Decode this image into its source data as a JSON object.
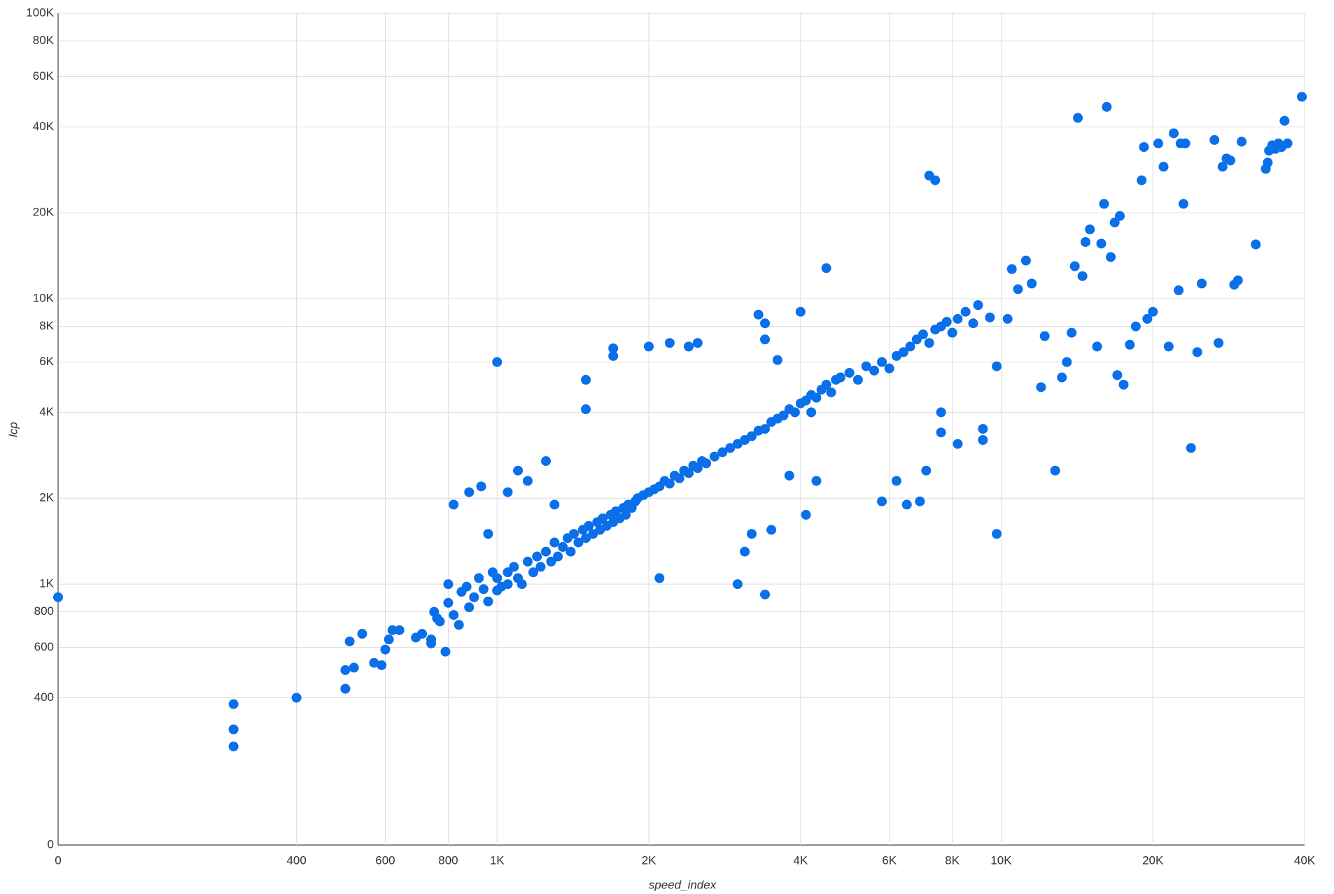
{
  "chart_data": {
    "type": "scatter",
    "x_label": "speed_index",
    "y_label": "lcp",
    "color": "#0a6fe8",
    "xscale": "log",
    "yscale": "log",
    "grid": true,
    "xlim": [
      0,
      40000
    ],
    "ylim": [
      0,
      100000
    ],
    "xticks": [
      0,
      400,
      600,
      800,
      {
        "value": 1000,
        "label": "1K"
      },
      {
        "value": 2000,
        "label": "2K"
      },
      {
        "value": 4000,
        "label": "4K"
      },
      {
        "value": 6000,
        "label": "6K"
      },
      {
        "value": 8000,
        "label": "8K"
      },
      {
        "value": 10000,
        "label": "10K"
      },
      {
        "value": 20000,
        "label": "20K"
      },
      {
        "value": 40000,
        "label": "40K"
      }
    ],
    "yticks": [
      0,
      400,
      600,
      800,
      {
        "value": 1000,
        "label": "1K"
      },
      {
        "value": 2000,
        "label": "2K"
      },
      {
        "value": 4000,
        "label": "4K"
      },
      {
        "value": 6000,
        "label": "6K"
      },
      {
        "value": 8000,
        "label": "8K"
      },
      {
        "value": 10000,
        "label": "10K"
      },
      {
        "value": 20000,
        "label": "20K"
      },
      {
        "value": 40000,
        "label": "40K"
      },
      {
        "value": 60000,
        "label": "60K"
      },
      {
        "value": 80000,
        "label": "80K"
      },
      {
        "value": 100000,
        "label": "100K"
      }
    ],
    "x": [
      0,
      300,
      300,
      300,
      400,
      500,
      500,
      520,
      510,
      540,
      570,
      590,
      600,
      610,
      620,
      640,
      690,
      710,
      740,
      750,
      760,
      770,
      740,
      790,
      800,
      820,
      800,
      820,
      840,
      850,
      870,
      880,
      900,
      920,
      940,
      960,
      980,
      1000,
      1000,
      1020,
      1050,
      1050,
      1080,
      1100,
      1120,
      1150,
      1180,
      1200,
      1220,
      1250,
      1280,
      1300,
      1320,
      1350,
      1380,
      1400,
      1420,
      1450,
      1480,
      1500,
      1520,
      1550,
      1580,
      1600,
      1620,
      1650,
      1680,
      1700,
      1720,
      1750,
      1780,
      1800,
      1820,
      1850,
      1880,
      1900,
      1950,
      2000,
      2050,
      2100,
      2150,
      2200,
      2250,
      2300,
      2350,
      2400,
      2450,
      2500,
      2550,
      2600,
      2700,
      2800,
      2900,
      3000,
      3100,
      3200,
      3300,
      3400,
      3500,
      3600,
      3700,
      3800,
      3900,
      4000,
      4100,
      4200,
      4300,
      4400,
      4500,
      4600,
      4700,
      4800,
      5000,
      5200,
      5400,
      5600,
      5800,
      6000,
      6200,
      6400,
      6600,
      6800,
      7000,
      7200,
      7400,
      7600,
      7800,
      8000,
      8200,
      8500,
      8800,
      9000,
      9500,
      1000,
      1500,
      1500,
      1700,
      1700,
      2000,
      2200,
      2400,
      2500,
      3300,
      3400,
      3400,
      3600,
      4000,
      4500,
      4200,
      4100,
      3000,
      3400,
      2100,
      3100,
      3200,
      3500,
      3800,
      4300,
      5800,
      6200,
      6900,
      7100,
      7200,
      7400,
      6500,
      7600,
      7600,
      8200,
      9200,
      9200,
      9800,
      9800,
      880,
      930,
      960,
      1050,
      1100,
      1250,
      1300,
      1150,
      10300,
      10500,
      10800,
      11200,
      11500,
      12000,
      12200,
      12800,
      13200,
      13500,
      13800,
      14000,
      14200,
      14500,
      14700,
      15000,
      15500,
      15800,
      16000,
      16200,
      16500,
      16800,
      17000,
      17200,
      17500,
      18000,
      18500,
      19000,
      19200,
      19500,
      20000,
      20500,
      21000,
      21500,
      22000,
      22500,
      22700,
      23000,
      23200,
      23800,
      24500,
      25000,
      26500,
      27000,
      27500,
      28000,
      28500,
      29000,
      29500,
      30000,
      32000,
      33500,
      33800,
      34000,
      34500,
      35000,
      35500,
      36000,
      36500,
      37000,
      39500
    ],
    "values": [
      900,
      380,
      310,
      270,
      400,
      430,
      500,
      510,
      630,
      670,
      530,
      520,
      590,
      640,
      690,
      690,
      650,
      670,
      640,
      800,
      760,
      740,
      620,
      580,
      1000,
      1900,
      860,
      780,
      720,
      940,
      980,
      830,
      900,
      1050,
      960,
      870,
      1100,
      950,
      1050,
      980,
      1100,
      1000,
      1150,
      1050,
      1000,
      1200,
      1100,
      1250,
      1150,
      1300,
      1200,
      1400,
      1250,
      1350,
      1450,
      1300,
      1500,
      1400,
      1550,
      1450,
      1600,
      1500,
      1650,
      1550,
      1700,
      1600,
      1750,
      1650,
      1800,
      1700,
      1850,
      1750,
      1900,
      1850,
      1950,
      2000,
      2050,
      2100,
      2150,
      2200,
      2300,
      2250,
      2400,
      2350,
      2500,
      2450,
      2600,
      2550,
      2700,
      2650,
      2800,
      2900,
      3000,
      3100,
      3200,
      3300,
      3450,
      3500,
      3700,
      3800,
      3900,
      4100,
      4000,
      4300,
      4400,
      4600,
      4500,
      4800,
      5000,
      4700,
      5200,
      5300,
      5500,
      5200,
      5800,
      5600,
      6000,
      5700,
      6300,
      6500,
      6800,
      7200,
      7500,
      7000,
      7800,
      8000,
      8300,
      7600,
      8500,
      9000,
      8200,
      9500,
      8600,
      6000,
      5200,
      4100,
      6700,
      6300,
      6800,
      7000,
      6800,
      7000,
      8800,
      8200,
      7200,
      6100,
      9000,
      12800,
      4000,
      1750,
      1000,
      920,
      1050,
      1300,
      1500,
      1550,
      2400,
      2300,
      1950,
      2300,
      1950,
      2500,
      27000,
      26000,
      1900,
      4000,
      3400,
      3100,
      3500,
      3200,
      1500,
      5800,
      2100,
      2200,
      1500,
      2100,
      2500,
      2700,
      1900,
      2300,
      8500,
      12700,
      10800,
      13600,
      11300,
      4900,
      7400,
      2500,
      5300,
      6000,
      7600,
      13000,
      43000,
      12000,
      15800,
      17500,
      6800,
      15600,
      21500,
      47000,
      14000,
      18500,
      5400,
      19500,
      5000,
      6900,
      8000,
      26000,
      34000,
      8500,
      9000,
      35000,
      29000,
      6800,
      38000,
      10700,
      35000,
      21500,
      35000,
      3000,
      6500,
      11300,
      36000,
      7000,
      29000,
      31000,
      30500,
      11200,
      11600,
      35500,
      15500,
      28500,
      30000,
      33000,
      34500,
      33500,
      35000,
      34000,
      42000,
      35000,
      51000
    ]
  }
}
